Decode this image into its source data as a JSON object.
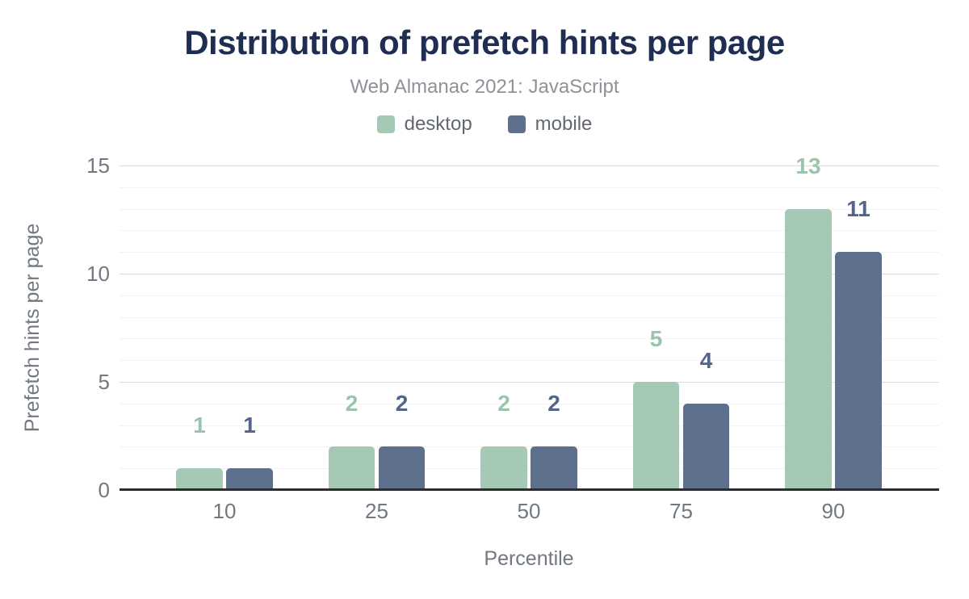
{
  "header": {
    "title": "Distribution of prefetch hints per page",
    "subtitle": "Web Almanac 2021: JavaScript"
  },
  "colors": {
    "background": "#ffffff",
    "title": "#1e2d51",
    "subtitle": "#8d9298",
    "legend_text": "#62686f",
    "tick_text": "#72787f",
    "axis_title_text": "#72787f",
    "major_grid": "#dcdcdc",
    "minor_grid": "#f3f3f3",
    "zero_line": "#2d2d2d"
  },
  "chart_data": {
    "type": "bar",
    "title": "Distribution of prefetch hints per page",
    "subtitle": "Web Almanac 2021: JavaScript",
    "categories": [
      "10",
      "25",
      "50",
      "75",
      "90"
    ],
    "series": [
      {
        "name": "desktop",
        "values": [
          1,
          2,
          2,
          5,
          13
        ],
        "color": "#a5c9b5",
        "label_color": "#9cc3ac"
      },
      {
        "name": "mobile",
        "values": [
          1,
          2,
          2,
          4,
          11
        ],
        "color": "#5f6f8e",
        "label_color": "#54658c"
      }
    ],
    "xlabel": "Percentile",
    "ylabel": "Prefetch hints per page",
    "ylim": [
      0,
      15
    ],
    "yticks": [
      0,
      5,
      10,
      15
    ],
    "minor_grid_step": 1,
    "grid": true,
    "legend_position": "top",
    "bar_value_labels": true
  }
}
